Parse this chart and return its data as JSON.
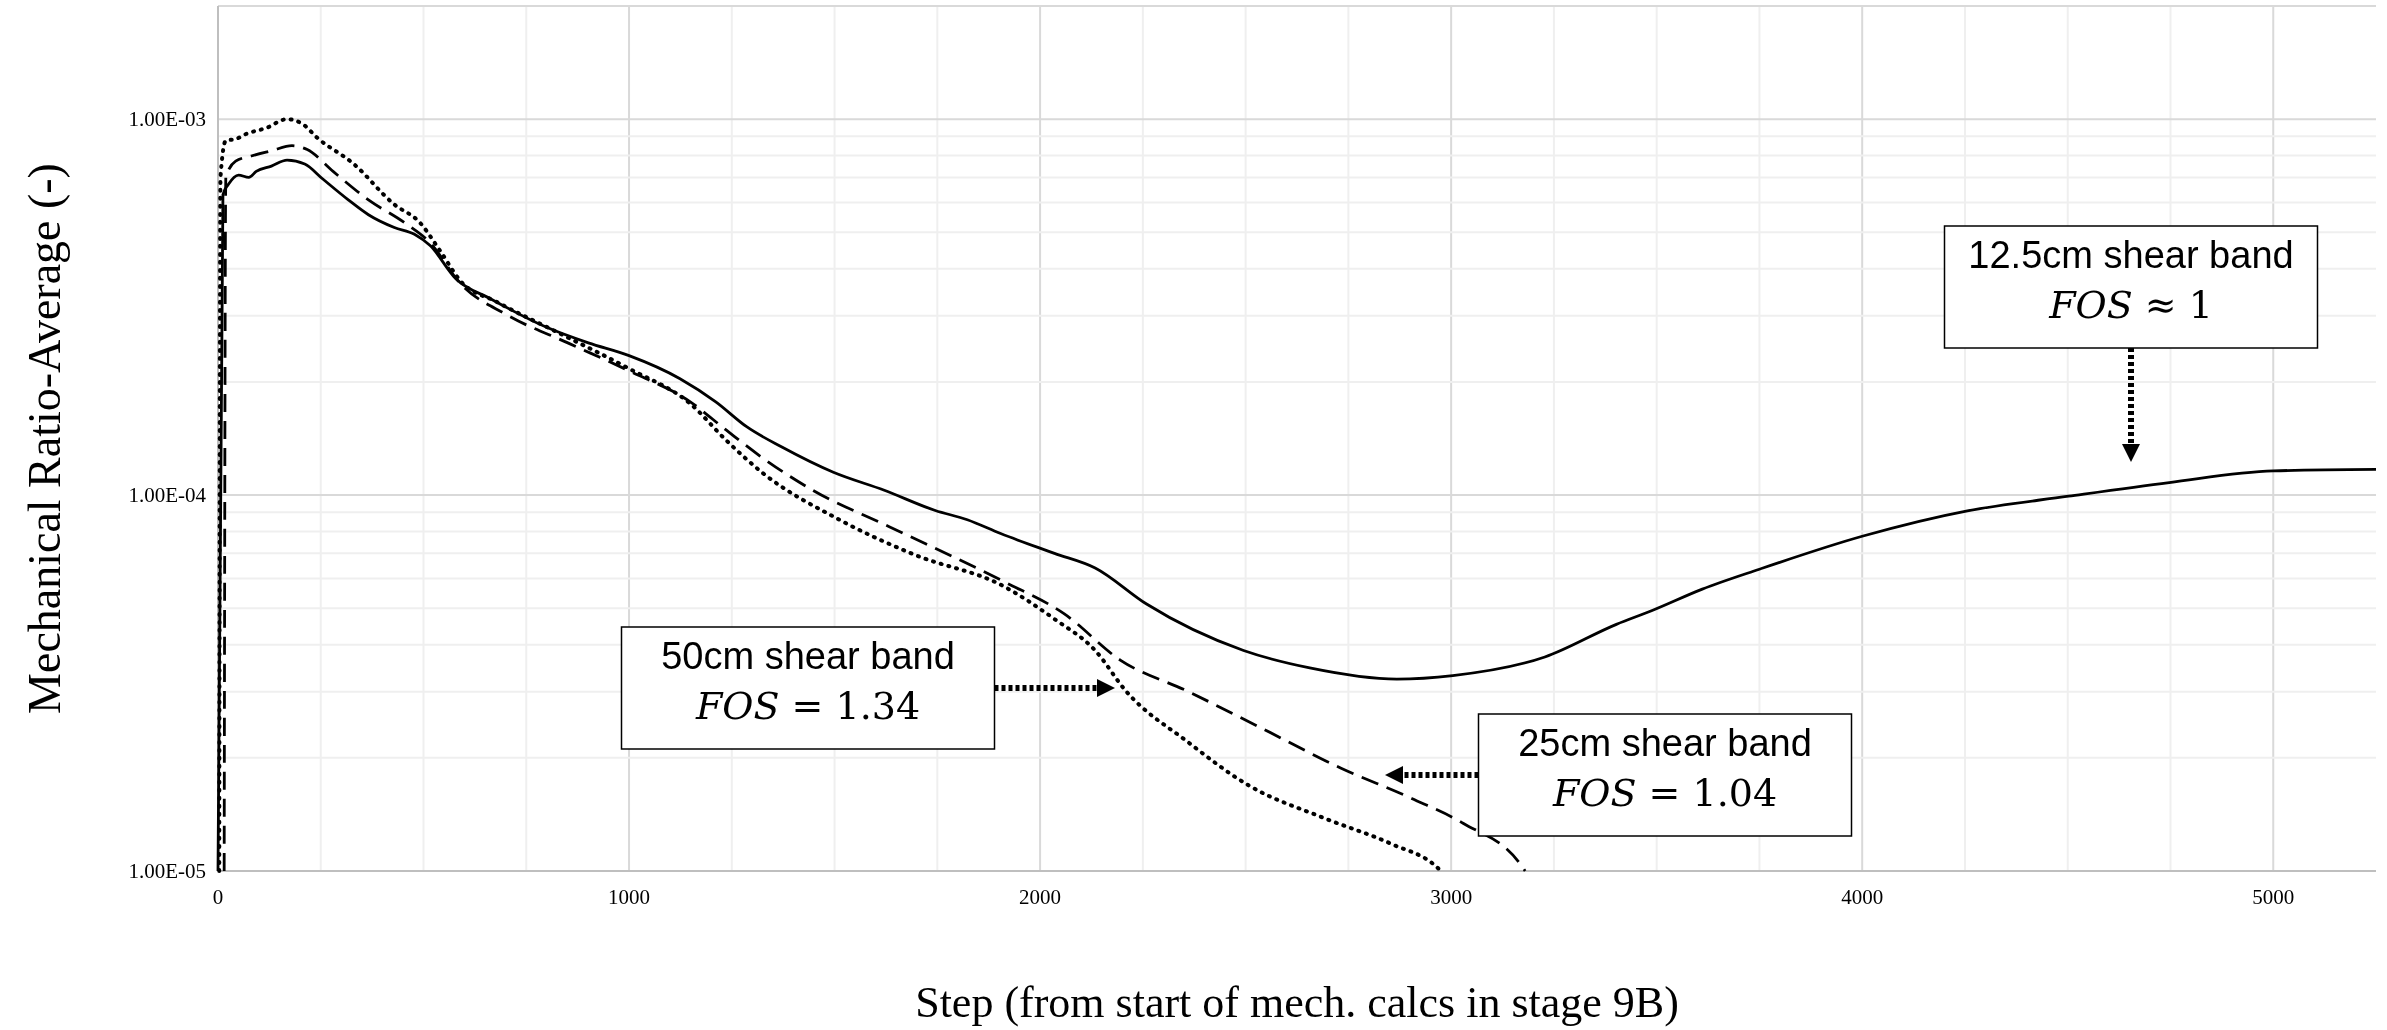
{
  "chart_data": {
    "type": "line",
    "xlabel": "Step (from start of mech. calcs in  stage 9B)",
    "ylabel": "Mechanical Ratio-Average (-)",
    "log": "y",
    "grid": true,
    "xlim": [
      0,
      5250
    ],
    "ylim": [
      1e-05,
      0.002
    ],
    "xticks": [
      0,
      {
        "value": 250,
        "label": null
      },
      {
        "value": 500,
        "label": null
      },
      {
        "value": 750,
        "label": null
      },
      1000,
      {
        "value": 1250,
        "label": null
      },
      {
        "value": 1500,
        "label": null
      },
      {
        "value": 1750,
        "label": null
      },
      2000,
      {
        "value": 2250,
        "label": null
      },
      {
        "value": 2500,
        "label": null
      },
      {
        "value": 2750,
        "label": null
      },
      3000,
      {
        "value": 3250,
        "label": null
      },
      {
        "value": 3500,
        "label": null
      },
      {
        "value": 3750,
        "label": null
      },
      4000,
      {
        "value": 4250,
        "label": null
      },
      {
        "value": 4500,
        "label": null
      },
      {
        "value": 4750,
        "label": null
      },
      5000
    ],
    "yticks": [
      {
        "value": 1e-05,
        "label": "1.00E-05"
      },
      {
        "value": 2e-05,
        "label": null
      },
      {
        "value": 3e-05,
        "label": null
      },
      {
        "value": 4e-05,
        "label": null
      },
      {
        "value": 5e-05,
        "label": null
      },
      {
        "value": 6e-05,
        "label": null
      },
      {
        "value": 7e-05,
        "label": null
      },
      {
        "value": 8e-05,
        "label": null
      },
      {
        "value": 9e-05,
        "label": null
      },
      {
        "value": 0.0001,
        "label": "1.00E-04"
      },
      {
        "value": 0.0002,
        "label": null
      },
      {
        "value": 0.0003,
        "label": null
      },
      {
        "value": 0.0004,
        "label": null
      },
      {
        "value": 0.0005,
        "label": null
      },
      {
        "value": 0.0006,
        "label": null
      },
      {
        "value": 0.0007,
        "label": null
      },
      {
        "value": 0.0008,
        "label": null
      },
      {
        "value": 0.0009,
        "label": null
      },
      {
        "value": 0.001,
        "label": "1.00E-03"
      }
    ],
    "series": [
      {
        "color": "#000000",
        "line_style": "solid",
        "x": [
          0,
          12,
          25,
          50,
          75,
          93,
          130,
          168,
          211,
          255,
          317,
          366,
          429,
          478,
          516,
          578,
          665,
          801,
          901,
          1000,
          1124,
          1211,
          1286,
          1373,
          1497,
          1621,
          1745,
          1823,
          1904,
          2035,
          2134,
          2259,
          2495,
          2656,
          2868,
          3004,
          3228,
          3402,
          3489,
          3611,
          3750,
          4000,
          4256,
          4502,
          4747,
          5000,
          5250
        ],
        "values": [
          1e-05,
          0.00063,
          0.00067,
          0.00071,
          0.0007,
          0.000726,
          0.00075,
          0.000778,
          0.00076,
          0.000693,
          0.00061,
          0.000557,
          0.000515,
          0.000494,
          0.000461,
          0.000377,
          0.000332,
          0.000279,
          0.000254,
          0.000235,
          0.000204,
          0.000177,
          0.000152,
          0.000134,
          0.000115,
          0.000103,
          9.1e-05,
          8.6e-05,
          7.9e-05,
          7e-05,
          6.4e-05,
          5.13e-05,
          3.86e-05,
          3.47e-05,
          3.24e-05,
          3.31e-05,
          3.71e-05,
          4.53e-05,
          4.93e-05,
          5.62e-05,
          6.35e-05,
          7.77e-05,
          9.08e-05,
          9.93e-05,
          0.000108,
          0.000116,
          0.000117
        ]
      },
      {
        "color": "#000000",
        "line_style": "dashed",
        "x": [
          15,
          19,
          43,
          81,
          130,
          180,
          217,
          280,
          366,
          453,
          516,
          590,
          702,
          851,
          1000,
          1149,
          1236,
          1323,
          1447,
          1633,
          1910,
          2059,
          2195,
          2358,
          2532,
          2731,
          2904,
          3029,
          3172,
          3180
        ],
        "values": [
          1e-05,
          0.0007,
          0.000773,
          0.000798,
          0.000824,
          0.00085,
          0.00083,
          0.000726,
          0.00061,
          0.000531,
          0.000469,
          0.000365,
          0.000302,
          0.000254,
          0.000214,
          0.000177,
          0.000149,
          0.000126,
          0.000103,
          8.24e-05,
          5.9e-05,
          4.83e-05,
          3.64e-05,
          3.01e-05,
          2.42e-05,
          1.88e-05,
          1.56e-05,
          1.34e-05,
          1.03e-05,
          1e-05
        ]
      },
      {
        "color": "#000000",
        "line_style": "dotted",
        "x": [
          3,
          6,
          19,
          43,
          68,
          118,
          168,
          205,
          242,
          329,
          429,
          491,
          540,
          590,
          677,
          826,
          1000,
          1149,
          1236,
          1323,
          1509,
          1696,
          1910,
          2035,
          2134,
          2209,
          2358,
          2507,
          2693,
          2855,
          2967,
          2975
        ],
        "values": [
          1e-05,
          0.0007,
          0.000877,
          0.000885,
          0.000913,
          0.000948,
          0.001,
          0.000972,
          0.000891,
          0.000762,
          0.000593,
          0.000531,
          0.000447,
          0.000371,
          0.000327,
          0.000271,
          0.000217,
          0.000175,
          0.00014,
          0.000115,
          8.63e-05,
          6.93e-05,
          5.73e-05,
          4.68e-05,
          3.86e-05,
          3.01e-05,
          2.21e-05,
          1.69e-05,
          1.38e-05,
          1.18e-05,
          1.02e-05,
          1e-05
        ]
      }
    ],
    "annotations": [
      "12.5cm shear band\nFOS ≈ 1",
      "50cm shear band\nFOS = 1.34",
      "25cm shear band\nFOS = 1.04"
    ]
  }
}
